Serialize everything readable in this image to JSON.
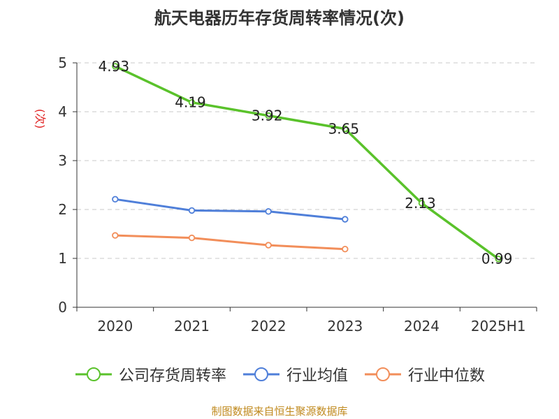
{
  "chart_data": {
    "type": "line",
    "title": "航天电器历年存货周转率情况(次)",
    "ylabel": "(次)",
    "xlabel": "",
    "ylim": [
      0,
      5
    ],
    "yticks": [
      "0",
      "1",
      "2",
      "3",
      "4",
      "5"
    ],
    "categories": [
      "2020",
      "2021",
      "2022",
      "2023",
      "2024",
      "2025H1"
    ],
    "grid": true,
    "legend_position": "bottom",
    "series": [
      {
        "name": "公司存货周转率",
        "color": "#5ac22b",
        "values": [
          4.93,
          4.19,
          3.92,
          3.65,
          2.13,
          0.99
        ],
        "labels": [
          "4.93",
          "4.19",
          "3.92",
          "3.65",
          "2.13",
          "0.99"
        ]
      },
      {
        "name": "行业均值",
        "color": "#4f7fd9",
        "values": [
          2.21,
          1.98,
          1.96,
          1.8,
          null,
          null
        ]
      },
      {
        "name": "行业中位数",
        "color": "#f28e5a",
        "values": [
          1.47,
          1.42,
          1.27,
          1.19,
          null,
          null
        ]
      }
    ]
  },
  "source": "制图数据来自恒生聚源数据库"
}
